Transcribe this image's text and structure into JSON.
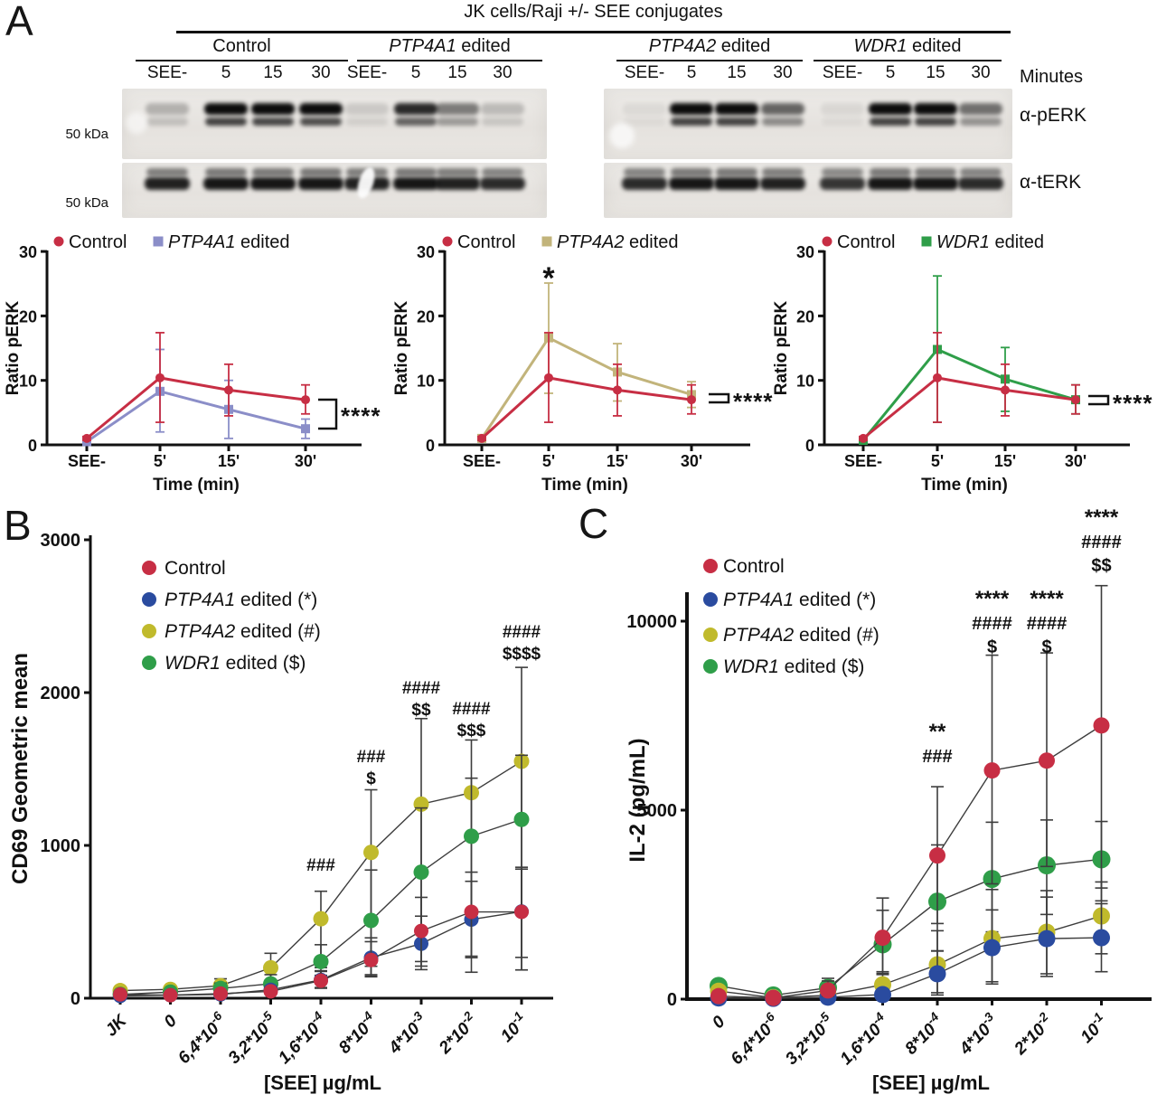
{
  "panels": {
    "a": "A",
    "b": "B",
    "c": "C"
  },
  "colors": {
    "control_red": "#c72e44",
    "ptp4a1_purple": "#8b8ec8",
    "ptp4a2_tan": "#c2b47b",
    "ptp4a1_blue": "#2a4b9f",
    "ptp4a2_yellow": "#c0ba2c",
    "wdr1_green": "#2f9e49",
    "chart_line_gray": "#3d3d3d"
  },
  "panel_a": {
    "title": "JK cells/Raji +/- SEE conjugates",
    "minutes_label": "Minutes",
    "groups": [
      {
        "gene": "",
        "rest": "Control"
      },
      {
        "gene": "PTP4A1",
        "rest": " edited"
      },
      {
        "gene": "PTP4A2",
        "rest": " edited"
      },
      {
        "gene": "WDR1",
        "rest": " edited"
      }
    ],
    "lane_labels": [
      "SEE-",
      "5",
      "15",
      "30"
    ],
    "blot_rows": [
      {
        "label": "α-pERK",
        "mw": "50 kDa"
      },
      {
        "label": "α-tERK",
        "mw": "50 kDa"
      }
    ],
    "perk_intensities": [
      [
        0.22,
        1,
        0.97,
        0.93
      ],
      [
        0.12,
        0.8,
        0.45,
        0.18
      ],
      [
        0.05,
        1,
        1,
        0.55
      ],
      [
        0.06,
        1,
        1,
        0.5
      ]
    ],
    "terk_intensities": [
      [
        0.95,
        1,
        1,
        1
      ],
      [
        0.95,
        1,
        0.95,
        0.9
      ],
      [
        0.9,
        1,
        1,
        0.95
      ],
      [
        0.85,
        1,
        1,
        0.9
      ]
    ]
  },
  "chart_data": [
    {
      "id": "perk-ptp4a1",
      "type": "line",
      "ylabel": "Ratio pERK",
      "xlabel": "Time (min)",
      "yticks": [
        "0",
        "10",
        "20",
        "30"
      ],
      "ylim": [
        0,
        30
      ],
      "categories": [
        "SEE-",
        "5'",
        "15'",
        "30'"
      ],
      "significance": "****",
      "peak_star": null,
      "legend": [
        {
          "gene": "",
          "rest": "Control",
          "color": "#c72e44",
          "marker": "circle"
        },
        {
          "gene": "PTP4A1",
          "rest": " edited",
          "color": "#8b8ec8",
          "marker": "square"
        }
      ],
      "series": [
        {
          "name": "PTP4A1 edited",
          "color": "#8b8ec8",
          "marker": "square",
          "values": [
            0.5,
            8.3,
            5.5,
            2.5
          ],
          "err_plus": [
            0.2,
            6.5,
            4.5,
            1.5
          ],
          "err_minus": [
            0.3,
            6.3,
            4.5,
            1.5
          ]
        },
        {
          "name": "Control",
          "color": "#c72e44",
          "marker": "circle",
          "values": [
            1,
            10.4,
            8.5,
            7
          ],
          "err_plus": [
            0.3,
            7,
            4,
            2.3
          ],
          "err_minus": [
            0.3,
            6.9,
            4,
            2.2
          ]
        }
      ]
    },
    {
      "id": "perk-ptp4a2",
      "type": "line",
      "ylabel": "Ratio pERK",
      "xlabel": "Time (min)",
      "yticks": [
        "0",
        "10",
        "20",
        "30"
      ],
      "ylim": [
        0,
        30
      ],
      "categories": [
        "SEE-",
        "5'",
        "15'",
        "30'"
      ],
      "significance": "****",
      "peak_star": "*",
      "legend": [
        {
          "gene": "",
          "rest": "Control",
          "color": "#c72e44",
          "marker": "circle"
        },
        {
          "gene": "PTP4A2",
          "rest": " edited",
          "color": "#c2b47b",
          "marker": "square"
        }
      ],
      "series": [
        {
          "name": "PTP4A2 edited",
          "color": "#c2b47b",
          "marker": "square",
          "values": [
            1,
            16.6,
            11.3,
            7.8
          ],
          "err_plus": [
            0.2,
            8.5,
            4.4,
            2
          ],
          "err_minus": [
            0.3,
            8.6,
            4.5,
            2
          ]
        },
        {
          "name": "Control",
          "color": "#c72e44",
          "marker": "circle",
          "values": [
            1,
            10.4,
            8.5,
            7
          ],
          "err_plus": [
            0.3,
            7,
            4,
            2.3
          ],
          "err_minus": [
            0.3,
            6.9,
            4,
            2.2
          ]
        }
      ]
    },
    {
      "id": "perk-wdr1",
      "type": "line",
      "ylabel": "Ratio pERK",
      "xlabel": "Time (min)",
      "yticks": [
        "0",
        "10",
        "20",
        "30"
      ],
      "ylim": [
        0,
        30
      ],
      "categories": [
        "SEE-",
        "5'",
        "15'",
        "30'"
      ],
      "significance": "****",
      "peak_star": null,
      "legend": [
        {
          "gene": "",
          "rest": "Control",
          "color": "#c72e44",
          "marker": "circle"
        },
        {
          "gene": "WDR1",
          "rest": " edited",
          "color": "#2f9e49",
          "marker": "square"
        }
      ],
      "series": [
        {
          "name": "WDR1 edited",
          "color": "#2f9e49",
          "marker": "square",
          "values": [
            0.7,
            14.8,
            10.2,
            7
          ],
          "err_plus": [
            0.2,
            11.4,
            4.9,
            2.3
          ],
          "err_minus": [
            0.3,
            11.3,
            5,
            2.2
          ]
        },
        {
          "name": "Control",
          "color": "#c72e44",
          "marker": "circle",
          "values": [
            1,
            10.4,
            8.5,
            7
          ],
          "err_plus": [
            0.3,
            7,
            4,
            2.3
          ],
          "err_minus": [
            0.3,
            6.9,
            4,
            2.2
          ]
        }
      ]
    },
    {
      "id": "cd69",
      "type": "line",
      "ylabel": "CD69 Geometric mean",
      "xlabel": "[SEE] µg/mL",
      "yticks": [
        "0",
        "1000",
        "2000",
        "3000"
      ],
      "ylim": [
        0,
        3000
      ],
      "categories": [
        "JK",
        "0",
        "6,4*10^-6",
        "3,2*10^-5",
        "1,6*10^-4",
        "8*10^-4",
        "4*10^-3",
        "2*10^-2",
        "10^-1"
      ],
      "legend": [
        {
          "gene": "",
          "rest": "Control",
          "color": "#c72e44",
          "marker": "circle"
        },
        {
          "gene": "PTP4A1",
          "rest": " edited (*)",
          "color": "#2a4b9f",
          "marker": "circle"
        },
        {
          "gene": "PTP4A2",
          "rest": " edited (#)",
          "color": "#c0ba2c",
          "marker": "circle"
        },
        {
          "gene": "WDR1",
          "rest": " edited ($)",
          "color": "#2f9e49",
          "marker": "circle"
        }
      ],
      "series": [
        {
          "name": "PTP4A2 edited",
          "color": "#c0ba2c",
          "r": 8.5,
          "values": [
            50,
            58,
            82,
            199,
            520,
            954,
            1270,
            1345,
            1550
          ],
          "err_plus": [
            15,
            15,
            45,
            95,
            180,
            410,
            560,
            345,
            615
          ],
          "err_minus": [
            12,
            15,
            30,
            80,
            320,
            800,
            1060,
            1175,
            1365
          ]
        },
        {
          "name": "WDR1 edited",
          "color": "#2f9e49",
          "r": 8.5,
          "values": [
            25,
            40,
            64,
            94,
            240,
            509,
            825,
            1060,
            1170
          ],
          "err_plus": [
            10,
            12,
            35,
            60,
            110,
            330,
            420,
            380,
            420
          ],
          "err_minus": [
            10,
            10,
            20,
            45,
            90,
            300,
            400,
            500,
            600
          ]
        },
        {
          "name": "PTP4A1 edited",
          "color": "#2a4b9f",
          "r": 8,
          "values": [
            15,
            20,
            25,
            55,
            120,
            265,
            357,
            515,
            567
          ],
          "err_plus": [
            8,
            10,
            15,
            25,
            60,
            130,
            180,
            250,
            290
          ],
          "err_minus": [
            8,
            10,
            10,
            20,
            50,
            120,
            170,
            240,
            300
          ]
        },
        {
          "name": "Control",
          "color": "#c72e44",
          "r": 8,
          "values": [
            25,
            20,
            30,
            45,
            115,
            250,
            440,
            565,
            565
          ],
          "err_plus": [
            10,
            10,
            15,
            25,
            60,
            120,
            220,
            260,
            280
          ],
          "err_minus": [
            10,
            10,
            10,
            20,
            50,
            110,
            200,
            300,
            380
          ]
        }
      ],
      "annotations": [
        {
          "category": "1,6*10^-4",
          "lines": [
            "###"
          ]
        },
        {
          "category": "8*10^-4",
          "lines": [
            "###",
            "$"
          ]
        },
        {
          "category": "4*10^-3",
          "lines": [
            "####",
            "$$"
          ]
        },
        {
          "category": "2*10^-2",
          "lines": [
            "####",
            "$$$"
          ]
        },
        {
          "category": "10^-1",
          "lines": [
            "####",
            "$$$$"
          ]
        }
      ]
    },
    {
      "id": "il2",
      "type": "line",
      "ylabel": "IL-2 (pg/mL)",
      "xlabel": "[SEE] µg/mL",
      "yticks": [
        "0",
        "5000",
        "10000"
      ],
      "ylim": [
        0,
        12000
      ],
      "categories": [
        "0",
        "6,4*10^-6",
        "3,2*10^-5",
        "1,6*10^-4",
        "8*10^-4",
        "4*10^-3",
        "2*10^-2",
        "10^-1"
      ],
      "legend": [
        {
          "gene": "",
          "rest": "Control",
          "color": "#c72e44",
          "marker": "circle"
        },
        {
          "gene": "PTP4A1",
          "rest": " edited (*)",
          "color": "#2a4b9f",
          "marker": "circle"
        },
        {
          "gene": "PTP4A2",
          "rest": " edited (#)",
          "color": "#c0ba2c",
          "marker": "circle"
        },
        {
          "gene": "WDR1",
          "rest": " edited ($)",
          "color": "#2f9e49",
          "marker": "circle"
        }
      ],
      "series": [
        {
          "name": "WDR1 edited",
          "color": "#2f9e49",
          "r": 10,
          "values": [
            350,
            100,
            300,
            1450,
            2580,
            3180,
            3540,
            3700
          ],
          "err_plus": [
            150,
            80,
            250,
            900,
            1500,
            1500,
            1200,
            1000
          ],
          "err_minus": [
            150,
            60,
            200,
            800,
            1300,
            1400,
            1300,
            1100
          ]
        },
        {
          "name": "PTP4A2 edited",
          "color": "#c0ba2c",
          "r": 9.5,
          "values": [
            210,
            40,
            100,
            380,
            909,
            1600,
            1770,
            2200
          ],
          "err_plus": [
            100,
            50,
            120,
            300,
            900,
            1300,
            1100,
            900
          ],
          "err_minus": [
            100,
            20,
            70,
            250,
            800,
            1200,
            1100,
            1000
          ]
        },
        {
          "name": "PTP4A1 edited",
          "color": "#2a4b9f",
          "r": 9.5,
          "values": [
            30,
            20,
            50,
            120,
            670,
            1360,
            1600,
            1625
          ],
          "err_plus": [
            40,
            30,
            60,
            100,
            600,
            1000,
            1100,
            900
          ],
          "err_minus": [
            20,
            10,
            30,
            80,
            500,
            900,
            1000,
            900
          ]
        },
        {
          "name": "Control",
          "color": "#c72e44",
          "r": 9,
          "values": [
            80,
            30,
            230,
            1625,
            3800,
            6050,
            6310,
            7240
          ],
          "err_plus": [
            120,
            40,
            250,
            1050,
            1820,
            3050,
            2850,
            3700
          ],
          "err_minus": [
            70,
            20,
            150,
            900,
            1800,
            3000,
            2800,
            4300
          ]
        }
      ],
      "annotations": [
        {
          "category": "8*10^-4",
          "lines": [
            "**",
            "###"
          ]
        },
        {
          "category": "4*10^-3",
          "lines": [
            "****",
            "####",
            "$"
          ]
        },
        {
          "category": "2*10^-2",
          "lines": [
            "****",
            "####",
            "$"
          ]
        },
        {
          "category": "10^-1",
          "lines": [
            "****",
            "####",
            "$$"
          ]
        }
      ]
    }
  ]
}
